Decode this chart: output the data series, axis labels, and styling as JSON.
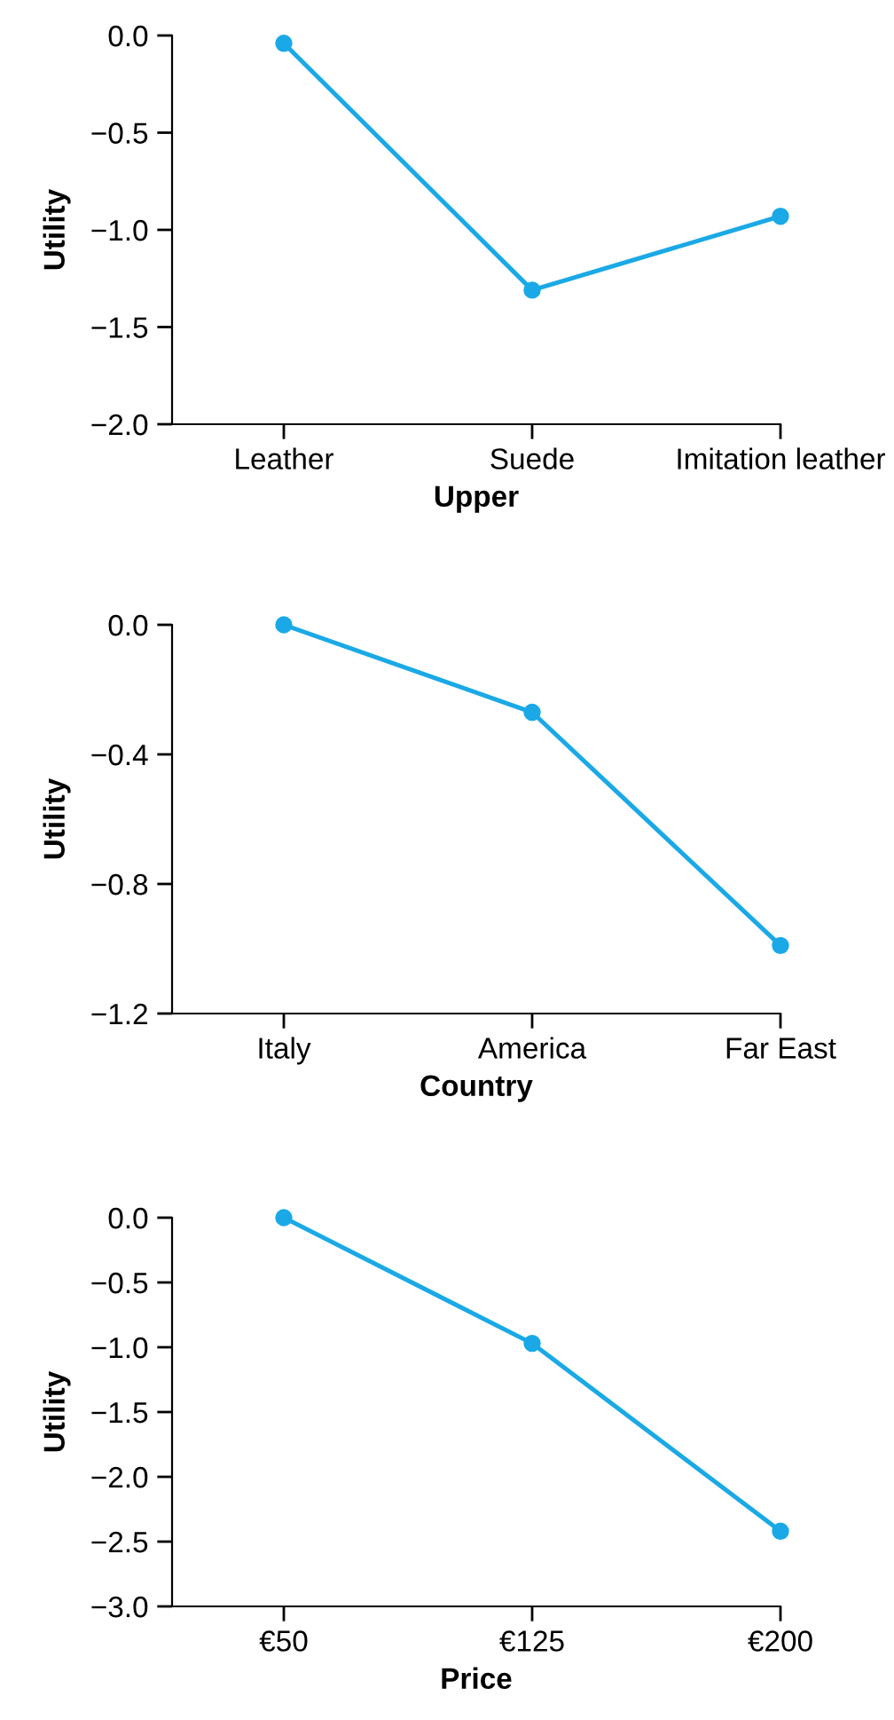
{
  "chart_data": [
    {
      "type": "line",
      "xlabel": "Upper",
      "ylabel": "Utility",
      "categories": [
        "Leather",
        "Suede",
        "Imitation leather"
      ],
      "series": [
        {
          "color": "#1aa9e6",
          "values": [
            -0.04,
            -1.31,
            -0.93
          ]
        }
      ],
      "ylim": [
        -2.0,
        0.0
      ],
      "yticks": [
        {
          "value": -2.0,
          "label": "−2.0"
        },
        {
          "value": -1.5,
          "label": "−1.5"
        },
        {
          "value": -1.0,
          "label": "−1.0"
        },
        {
          "value": -0.5,
          "label": "−0.5"
        },
        {
          "value": 0.0,
          "label": "0.0"
        }
      ],
      "marker": "circle",
      "line_style": "solid",
      "grid": false,
      "legend": false
    },
    {
      "type": "line",
      "xlabel": "Country",
      "ylabel": "Utility",
      "categories": [
        "Italy",
        "America",
        "Far East"
      ],
      "series": [
        {
          "color": "#1aa9e6",
          "values": [
            0.0,
            -0.27,
            -0.99
          ]
        }
      ],
      "ylim": [
        -1.2,
        0.0
      ],
      "yticks": [
        {
          "value": -1.2,
          "label": "−1.2"
        },
        {
          "value": -0.8,
          "label": "−0.8"
        },
        {
          "value": -0.4,
          "label": "−0.4"
        },
        {
          "value": 0.0,
          "label": "0.0"
        }
      ],
      "marker": "circle",
      "line_style": "solid",
      "grid": false,
      "legend": false
    },
    {
      "type": "line",
      "xlabel": "Price",
      "ylabel": "Utility",
      "categories": [
        "€50",
        "€125",
        "€200"
      ],
      "series": [
        {
          "color": "#1aa9e6",
          "values": [
            0.0,
            -0.97,
            -2.42
          ]
        }
      ],
      "ylim": [
        -3.0,
        0.0
      ],
      "yticks": [
        {
          "value": -3.0,
          "label": "−3.0"
        },
        {
          "value": -2.5,
          "label": "−2.5"
        },
        {
          "value": -2.0,
          "label": "−2.0"
        },
        {
          "value": -1.5,
          "label": "−1.5"
        },
        {
          "value": -1.0,
          "label": "−1.0"
        },
        {
          "value": -0.5,
          "label": "−0.5"
        },
        {
          "value": 0.0,
          "label": "0.0"
        }
      ],
      "marker": "circle",
      "line_style": "solid",
      "grid": false,
      "legend": false
    }
  ]
}
